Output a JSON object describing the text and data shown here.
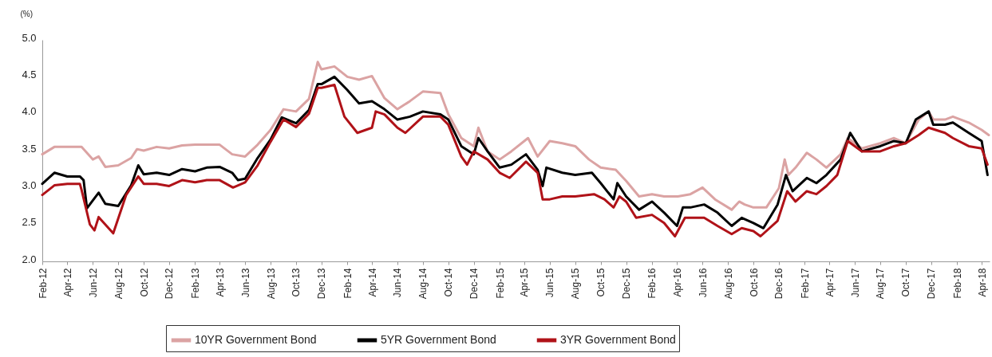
{
  "chart_data": {
    "type": "line",
    "ylabel": "(%)",
    "legend": "bottom",
    "line_style": "solid",
    "xlim": [
      "2012-02-01",
      "2018-04-20"
    ],
    "ylim": [
      2,
      5
    ],
    "yticks": [
      {
        "value": 2,
        "label": "2.0"
      },
      {
        "value": 2.5,
        "label": "2.5"
      },
      {
        "value": 3,
        "label": "3.0"
      },
      {
        "value": 3.5,
        "label": "3.5"
      },
      {
        "value": 4,
        "label": "4.0"
      },
      {
        "value": 4.5,
        "label": "4.5"
      },
      {
        "value": 5,
        "label": "5.0"
      }
    ],
    "xticks": [
      {
        "value": "2012-02",
        "label": "Feb-12"
      },
      {
        "value": "2012-04",
        "label": "Apr-12"
      },
      {
        "value": "2012-06",
        "label": "Jun-12"
      },
      {
        "value": "2012-08",
        "label": "Aug-12"
      },
      {
        "value": "2012-10",
        "label": "Oct-12"
      },
      {
        "value": "2012-12",
        "label": "Dec-12"
      },
      {
        "value": "2013-02",
        "label": "Feb-13"
      },
      {
        "value": "2013-04",
        "label": "Apr-13"
      },
      {
        "value": "2013-06",
        "label": "Jun-13"
      },
      {
        "value": "2013-08",
        "label": "Aug-13"
      },
      {
        "value": "2013-10",
        "label": "Oct-13"
      },
      {
        "value": "2013-12",
        "label": "Dec-13"
      },
      {
        "value": "2014-02",
        "label": "Feb-14"
      },
      {
        "value": "2014-04",
        "label": "Apr-14"
      },
      {
        "value": "2014-06",
        "label": "Jun-14"
      },
      {
        "value": "2014-08",
        "label": "Aug-14"
      },
      {
        "value": "2014-10",
        "label": "Oct-14"
      },
      {
        "value": "2014-12",
        "label": "Dec-14"
      },
      {
        "value": "2015-02",
        "label": "Feb-15"
      },
      {
        "value": "2015-04",
        "label": "Apr-15"
      },
      {
        "value": "2015-06",
        "label": "Jun-15"
      },
      {
        "value": "2015-08",
        "label": "Aug-15"
      },
      {
        "value": "2015-10",
        "label": "Oct-15"
      },
      {
        "value": "2015-12",
        "label": "Dec-15"
      },
      {
        "value": "2016-02",
        "label": "Feb-16"
      },
      {
        "value": "2016-04",
        "label": "Apr-16"
      },
      {
        "value": "2016-06",
        "label": "Jun-16"
      },
      {
        "value": "2016-08",
        "label": "Aug-16"
      },
      {
        "value": "2016-10",
        "label": "Oct-16"
      },
      {
        "value": "2016-12",
        "label": "Dec-16"
      },
      {
        "value": "2017-02",
        "label": "Feb-17"
      },
      {
        "value": "2017-04",
        "label": "Apr-17"
      },
      {
        "value": "2017-06",
        "label": "Jun-17"
      },
      {
        "value": "2017-08",
        "label": "Aug-17"
      },
      {
        "value": "2017-10",
        "label": "Oct-17"
      },
      {
        "value": "2017-12",
        "label": "Dec-17"
      },
      {
        "value": "2018-02",
        "label": "Feb-18"
      },
      {
        "value": "2018-04",
        "label": "Apr-18"
      }
    ],
    "series": [
      {
        "name": "10YR Government Bond",
        "color": "#dba3a3",
        "x": [
          "2012-02-01",
          "2012-03-01",
          "2012-04-01",
          "2012-05-05",
          "2012-06-01",
          "2012-06-15",
          "2012-07-01",
          "2012-08-01",
          "2012-09-01",
          "2012-09-15",
          "2012-10-01",
          "2012-11-01",
          "2012-12-01",
          "2013-01-01",
          "2013-02-01",
          "2013-03-01",
          "2013-04-01",
          "2013-05-01",
          "2013-06-01",
          "2013-07-01",
          "2013-08-01",
          "2013-09-01",
          "2013-10-01",
          "2013-11-01",
          "2013-11-22",
          "2013-12-01",
          "2014-01-01",
          "2014-02-01",
          "2014-03-01",
          "2014-04-01",
          "2014-05-01",
          "2014-06-01",
          "2014-07-01",
          "2014-08-01",
          "2014-09-12",
          "2014-10-01",
          "2014-11-01",
          "2014-12-01",
          "2014-12-12",
          "2015-01-03",
          "2015-02-01",
          "2015-03-01",
          "2015-04-10",
          "2015-05-03",
          "2015-06-01",
          "2015-07-01",
          "2015-08-01",
          "2015-09-03",
          "2015-10-01",
          "2015-11-06",
          "2015-12-01",
          "2016-01-01",
          "2016-02-01",
          "2016-03-01",
          "2016-04-03",
          "2016-05-03",
          "2016-06-01",
          "2016-07-01",
          "2016-08-10",
          "2016-08-28",
          "2016-09-10",
          "2016-10-01",
          "2016-11-01",
          "2016-12-01",
          "2016-12-15",
          "2016-12-24",
          "2017-01-10",
          "2017-02-06",
          "2017-03-01",
          "2017-03-25",
          "2017-04-28",
          "2017-05-15",
          "2017-06-18",
          "2017-08-01",
          "2017-09-03",
          "2017-10-01",
          "2017-11-01",
          "2017-11-25",
          "2017-12-06",
          "2018-01-03",
          "2018-01-22",
          "2018-03-01",
          "2018-04-01",
          "2018-04-18"
        ],
        "values": [
          3.45,
          3.55,
          3.55,
          3.55,
          3.38,
          3.42,
          3.28,
          3.3,
          3.4,
          3.52,
          3.5,
          3.55,
          3.53,
          3.57,
          3.58,
          3.58,
          3.58,
          3.45,
          3.42,
          3.58,
          3.78,
          4.06,
          4.03,
          4.2,
          4.7,
          4.6,
          4.64,
          4.5,
          4.46,
          4.51,
          4.21,
          4.06,
          4.17,
          4.3,
          4.28,
          3.99,
          3.67,
          3.56,
          3.81,
          3.49,
          3.38,
          3.49,
          3.67,
          3.42,
          3.63,
          3.6,
          3.56,
          3.38,
          3.27,
          3.24,
          3.09,
          2.88,
          2.91,
          2.88,
          2.88,
          2.91,
          3.0,
          2.84,
          2.7,
          2.81,
          2.77,
          2.73,
          2.73,
          2.99,
          3.38,
          3.17,
          3.27,
          3.47,
          3.38,
          3.27,
          3.45,
          3.67,
          3.53,
          3.6,
          3.67,
          3.6,
          3.92,
          4.03,
          3.92,
          3.92,
          3.96,
          3.88,
          3.78,
          3.71
        ]
      },
      {
        "name": "5YR Government Bond",
        "color": "#000000",
        "x": [
          "2012-02-01",
          "2012-03-01",
          "2012-04-01",
          "2012-05-01",
          "2012-05-10",
          "2012-05-18",
          "2012-06-15",
          "2012-07-01",
          "2012-08-01",
          "2012-09-01",
          "2012-09-18",
          "2012-10-01",
          "2012-11-01",
          "2012-12-01",
          "2013-01-01",
          "2013-02-01",
          "2013-03-01",
          "2013-04-01",
          "2013-05-01",
          "2013-05-15",
          "2013-06-01",
          "2013-07-01",
          "2013-08-01",
          "2013-08-28",
          "2013-10-01",
          "2013-11-01",
          "2013-11-22",
          "2013-12-01",
          "2014-01-01",
          "2014-02-01",
          "2014-03-01",
          "2014-04-01",
          "2014-05-01",
          "2014-06-01",
          "2014-07-01",
          "2014-08-01",
          "2014-09-12",
          "2014-10-01",
          "2014-11-01",
          "2014-12-01",
          "2014-12-12",
          "2015-01-03",
          "2015-02-01",
          "2015-03-01",
          "2015-04-05",
          "2015-05-03",
          "2015-05-15",
          "2015-05-24",
          "2015-07-01",
          "2015-08-01",
          "2015-09-10",
          "2015-10-01",
          "2015-11-01",
          "2015-11-10",
          "2015-12-01",
          "2016-01-01",
          "2016-02-01",
          "2016-03-01",
          "2016-04-01",
          "2016-04-15",
          "2016-05-03",
          "2016-06-05",
          "2016-07-07",
          "2016-08-10",
          "2016-09-03",
          "2016-10-01",
          "2016-10-25",
          "2016-11-28",
          "2016-12-18",
          "2017-01-03",
          "2017-02-06",
          "2017-03-01",
          "2017-03-25",
          "2017-04-28",
          "2017-05-21",
          "2017-06-18",
          "2017-08-01",
          "2017-09-03",
          "2017-10-01",
          "2017-10-25",
          "2017-11-25",
          "2017-12-06",
          "2018-01-03",
          "2018-01-22",
          "2018-03-01",
          "2018-04-01",
          "2018-04-15"
        ],
        "values": [
          3.05,
          3.2,
          3.15,
          3.15,
          3.1,
          2.72,
          2.93,
          2.78,
          2.75,
          3.03,
          3.3,
          3.18,
          3.2,
          3.17,
          3.25,
          3.22,
          3.27,
          3.28,
          3.2,
          3.1,
          3.12,
          3.4,
          3.65,
          3.95,
          3.87,
          4.05,
          4.4,
          4.4,
          4.5,
          4.32,
          4.14,
          4.17,
          4.06,
          3.92,
          3.96,
          4.03,
          3.99,
          3.92,
          3.56,
          3.45,
          3.67,
          3.49,
          3.27,
          3.31,
          3.45,
          3.24,
          3.02,
          3.27,
          3.2,
          3.17,
          3.2,
          3.06,
          2.84,
          3.06,
          2.88,
          2.7,
          2.81,
          2.66,
          2.48,
          2.73,
          2.73,
          2.77,
          2.66,
          2.48,
          2.59,
          2.52,
          2.45,
          2.77,
          3.17,
          2.95,
          3.13,
          3.06,
          3.17,
          3.38,
          3.74,
          3.49,
          3.56,
          3.63,
          3.6,
          3.92,
          4.03,
          3.85,
          3.85,
          3.88,
          3.74,
          3.63,
          3.17
        ]
      },
      {
        "name": "3YR Government Bond",
        "color": "#b01218",
        "x": [
          "2012-02-01",
          "2012-03-01",
          "2012-04-01",
          "2012-05-01",
          "2012-05-05",
          "2012-05-25",
          "2012-06-05",
          "2012-06-15",
          "2012-07-01",
          "2012-07-20",
          "2012-08-20",
          "2012-09-18",
          "2012-10-01",
          "2012-11-01",
          "2012-12-01",
          "2013-01-01",
          "2013-02-01",
          "2013-03-01",
          "2013-04-01",
          "2013-05-03",
          "2013-06-01",
          "2013-07-01",
          "2013-08-01",
          "2013-09-01",
          "2013-10-01",
          "2013-11-01",
          "2013-11-22",
          "2013-12-01",
          "2014-01-01",
          "2014-01-25",
          "2014-02-25",
          "2014-04-01",
          "2014-04-10",
          "2014-05-01",
          "2014-06-01",
          "2014-06-20",
          "2014-08-01",
          "2014-09-12",
          "2014-10-01",
          "2014-11-01",
          "2014-11-15",
          "2014-12-01",
          "2015-01-03",
          "2015-02-01",
          "2015-02-25",
          "2015-04-05",
          "2015-05-03",
          "2015-05-15",
          "2015-06-01",
          "2015-07-01",
          "2015-08-01",
          "2015-09-15",
          "2015-10-10",
          "2015-11-01",
          "2015-11-15",
          "2015-12-01",
          "2015-12-25",
          "2016-02-01",
          "2016-03-01",
          "2016-03-27",
          "2016-04-20",
          "2016-05-03",
          "2016-06-05",
          "2016-07-07",
          "2016-08-10",
          "2016-09-03",
          "2016-10-01",
          "2016-10-18",
          "2016-11-28",
          "2016-12-21",
          "2017-01-10",
          "2017-02-06",
          "2017-03-01",
          "2017-03-25",
          "2017-04-20",
          "2017-05-15",
          "2017-06-18",
          "2017-08-01",
          "2017-09-03",
          "2017-10-01",
          "2017-11-01",
          "2017-11-25",
          "2018-01-03",
          "2018-01-22",
          "2018-03-01",
          "2018-04-01",
          "2018-04-15"
        ],
        "values": [
          2.9,
          3.03,
          3.05,
          3.05,
          2.97,
          2.5,
          2.42,
          2.6,
          2.5,
          2.38,
          2.9,
          3.15,
          3.05,
          3.05,
          3.02,
          3.1,
          3.07,
          3.1,
          3.1,
          3.0,
          3.07,
          3.3,
          3.62,
          3.92,
          3.82,
          4.0,
          4.35,
          4.35,
          4.39,
          3.96,
          3.74,
          3.81,
          4.03,
          3.99,
          3.81,
          3.74,
          3.96,
          3.96,
          3.85,
          3.42,
          3.31,
          3.49,
          3.38,
          3.2,
          3.13,
          3.35,
          3.2,
          2.84,
          2.84,
          2.88,
          2.88,
          2.91,
          2.84,
          2.73,
          2.88,
          2.81,
          2.59,
          2.63,
          2.52,
          2.34,
          2.59,
          2.59,
          2.59,
          2.48,
          2.37,
          2.45,
          2.41,
          2.34,
          2.55,
          2.95,
          2.81,
          2.95,
          2.91,
          3.02,
          3.17,
          3.63,
          3.49,
          3.49,
          3.56,
          3.6,
          3.71,
          3.81,
          3.74,
          3.67,
          3.56,
          3.53,
          3.31
        ]
      }
    ]
  }
}
